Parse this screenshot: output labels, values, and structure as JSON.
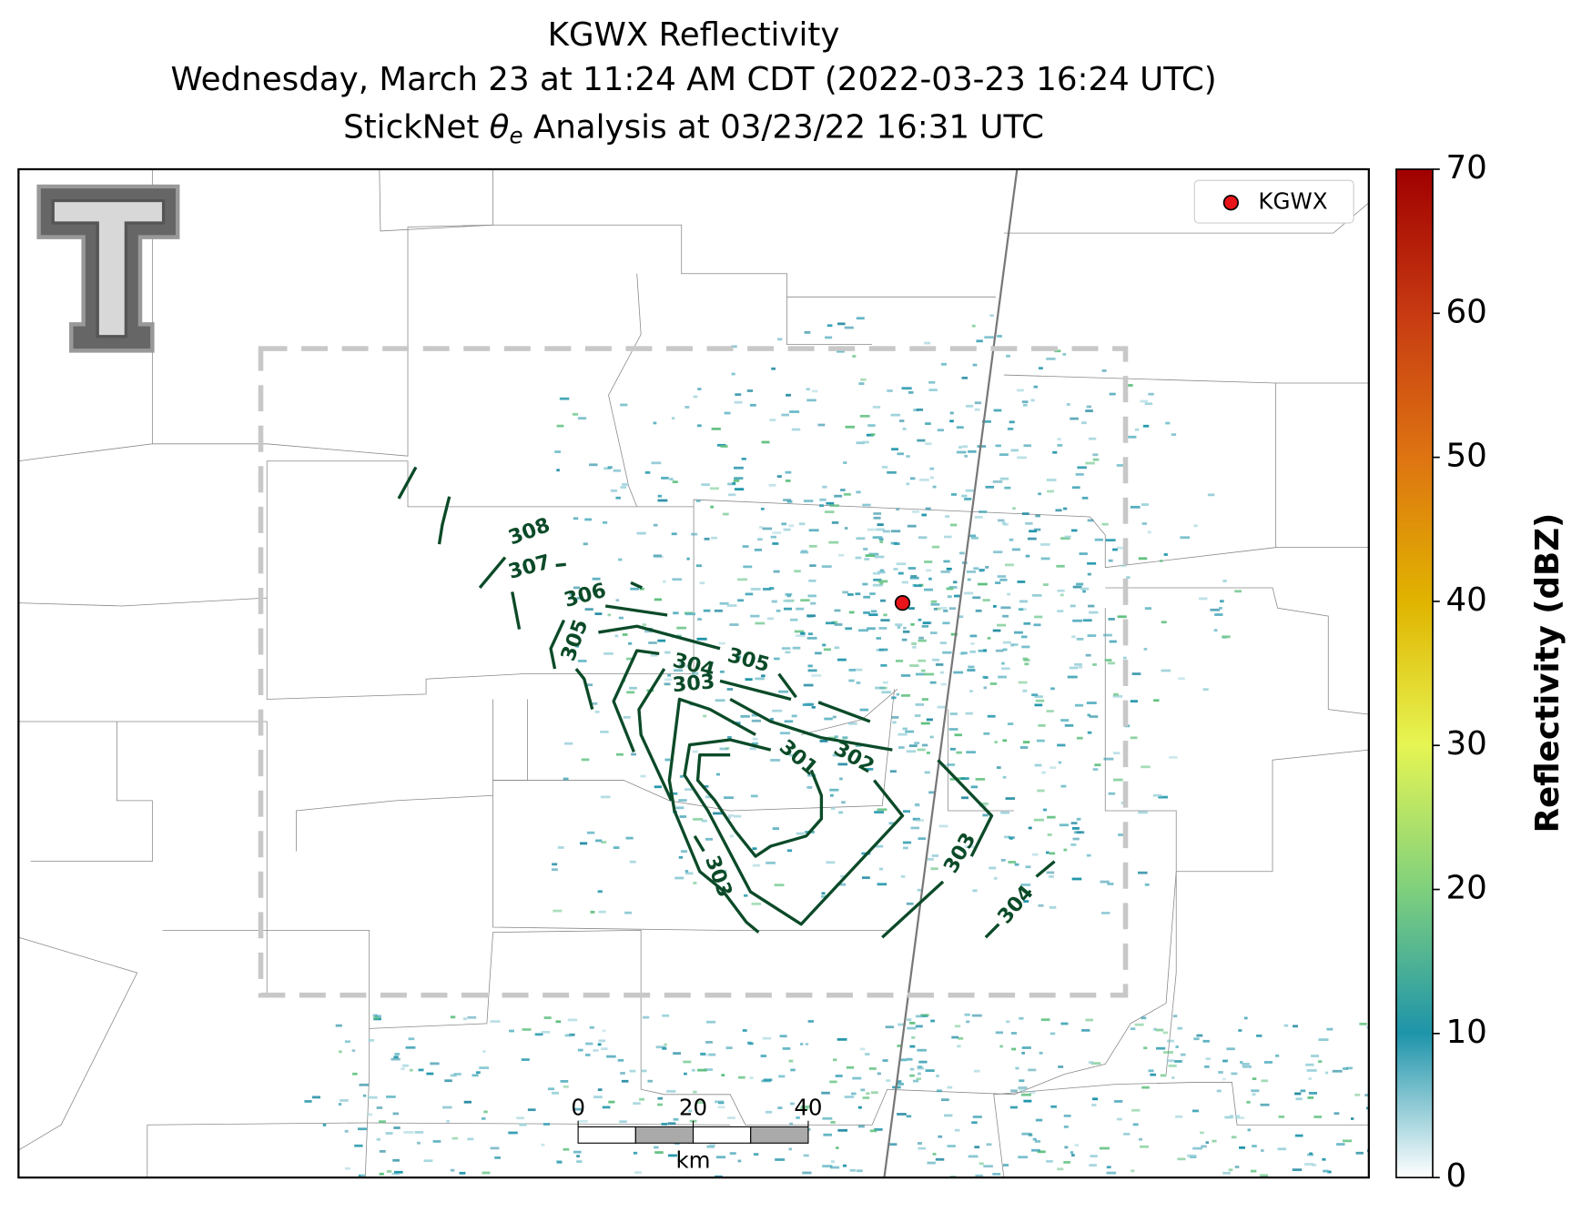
{
  "header": {
    "title_lines": [
      "KGWX Reflectivity",
      "Wednesday, March 23 at 11:24 AM CDT (2022-03-23 16:24 UTC)"
    ],
    "subtitle": {
      "prefix": "StickNet ",
      "symbol": "θ",
      "subscript": "e",
      "suffix": " Analysis at 03/23/22 16:31 UTC"
    }
  },
  "legend": {
    "label": "KGWX"
  },
  "contour_labels": [
    308,
    307,
    306,
    305,
    304,
    305,
    303,
    301,
    302,
    303,
    303,
    304
  ],
  "colorbar": {
    "label": "Reflectivity (dBZ)",
    "lim": [
      0,
      70
    ],
    "ticks": [
      0,
      10,
      20,
      30,
      40,
      50,
      60,
      70
    ]
  },
  "scale_bar": {
    "ticks": [
      0,
      20,
      40
    ],
    "unit": "km"
  }
}
